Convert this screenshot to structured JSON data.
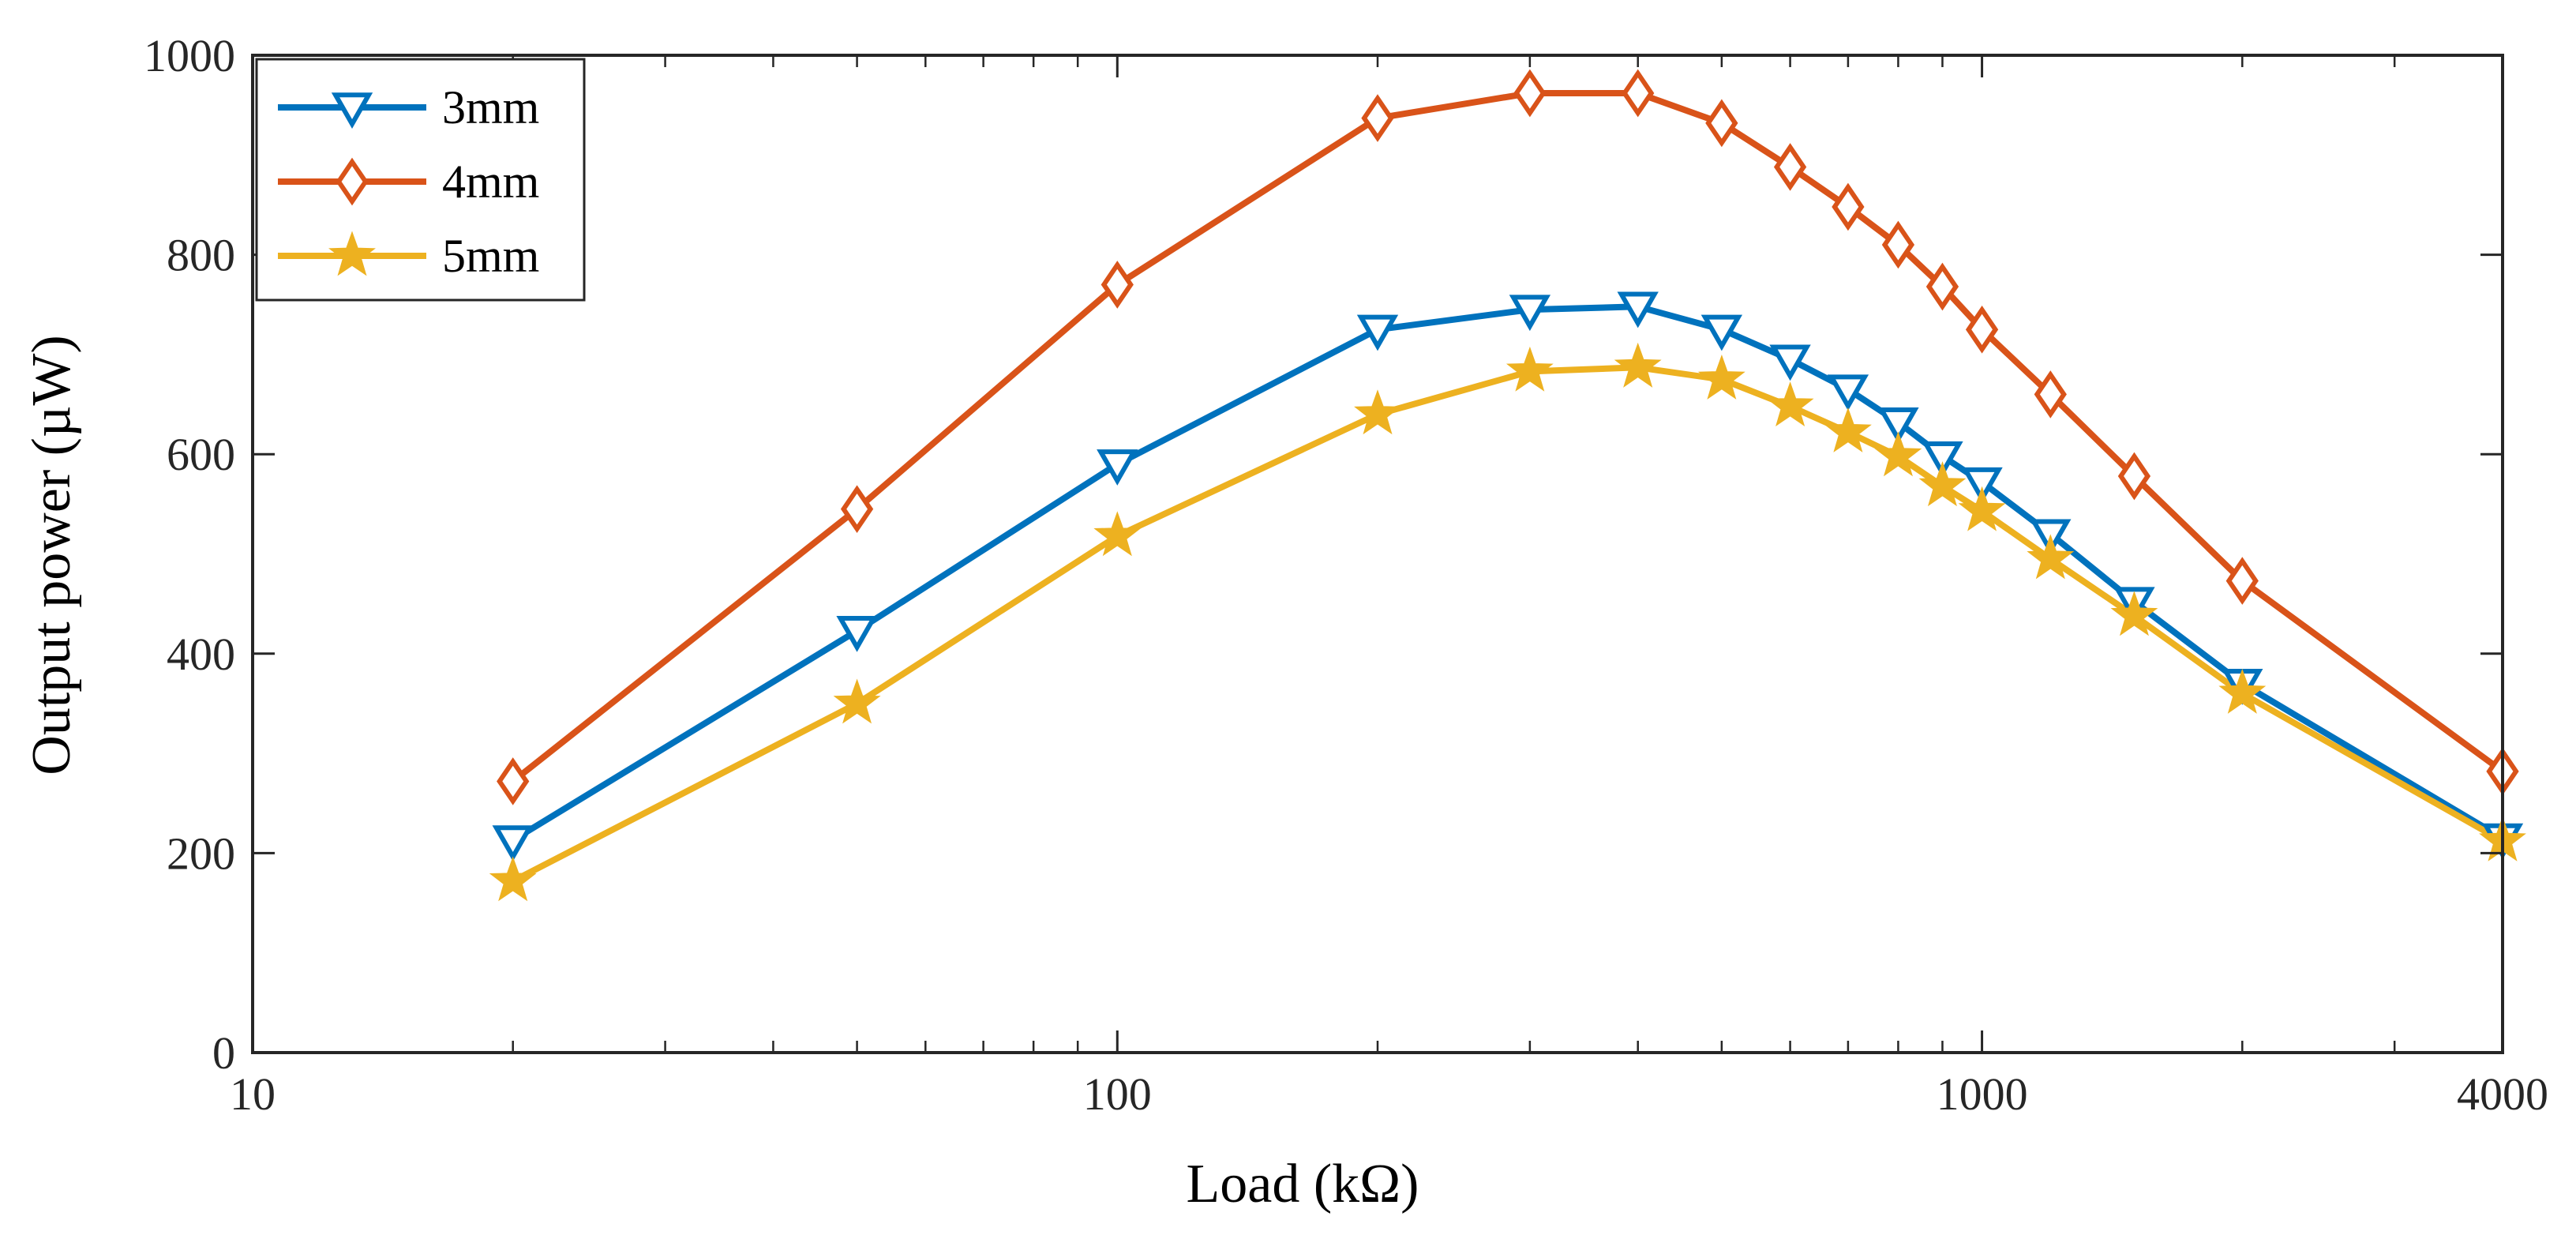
{
  "chart_data": {
    "type": "line",
    "xscale": "log",
    "xlabel": "Load (kΩ)",
    "ylabel": "Output power (µW)",
    "xlim": [
      10,
      4000
    ],
    "ylim": [
      0,
      1000
    ],
    "xticks": [
      10,
      100,
      1000,
      4000
    ],
    "xtick_labels": [
      "10",
      "100",
      "1000",
      "4000"
    ],
    "yticks": [
      0,
      200,
      400,
      600,
      800,
      1000
    ],
    "ytick_labels": [
      "0",
      "200",
      "400",
      "600",
      "800",
      "1000"
    ],
    "legend_position": "top-left",
    "x": [
      20,
      50,
      100,
      200,
      300,
      400,
      500,
      600,
      700,
      800,
      900,
      1000,
      1200,
      1500,
      2000,
      4000
    ],
    "series": [
      {
        "name": "3mm",
        "color": "#0072BD",
        "marker": "triangle-down",
        "values": [
          213,
          423,
          590,
          725,
          745,
          748,
          725,
          695,
          665,
          632,
          598,
          572,
          520,
          452,
          370,
          215
        ]
      },
      {
        "name": "4mm",
        "color": "#D95319",
        "marker": "diamond",
        "values": [
          272,
          545,
          770,
          937,
          962,
          962,
          932,
          888,
          848,
          810,
          768,
          725,
          660,
          578,
          473,
          282
        ]
      },
      {
        "name": "5mm",
        "color": "#EDB120",
        "marker": "star",
        "values": [
          172,
          350,
          518,
          640,
          683,
          687,
          675,
          648,
          622,
          598,
          568,
          543,
          495,
          438,
          360,
          212
        ]
      }
    ]
  }
}
